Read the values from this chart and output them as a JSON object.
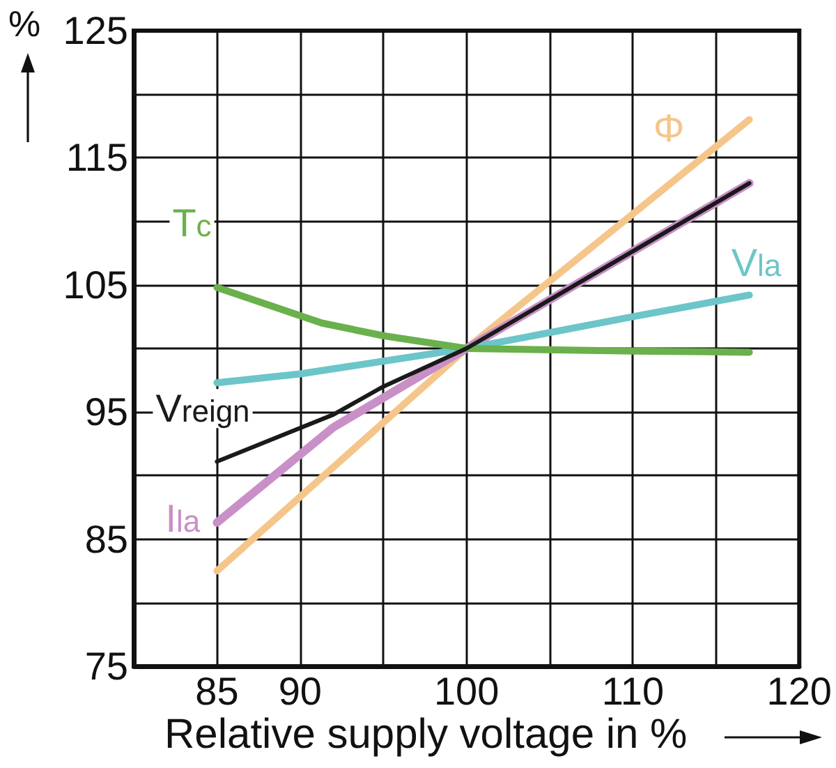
{
  "chart_data": {
    "type": "line",
    "xlabel": "Relative supply voltage in %",
    "ylabel": "%",
    "xlim": [
      80,
      120
    ],
    "xticks": [
      85,
      90,
      {
        "value": 95,
        "label": null
      },
      100,
      {
        "value": 105,
        "label": null
      },
      110,
      {
        "value": 115,
        "label": null
      },
      120
    ],
    "ylim": [
      75,
      125
    ],
    "yticks": [
      75,
      {
        "value": 80,
        "label": null
      },
      85,
      {
        "value": 90,
        "label": null
      },
      95,
      {
        "value": 100,
        "label": null
      },
      105,
      {
        "value": 110,
        "label": null
      },
      115,
      {
        "value": 120,
        "label": null
      },
      125
    ],
    "grid": true,
    "legend": false,
    "marker": "none",
    "line_style": "solid",
    "series": [
      {
        "name": "Φ",
        "color": "#f5c58a",
        "x": [
          85,
          100,
          117
        ],
        "values": [
          82.5,
          100,
          118
        ]
      },
      {
        "name": "I$_{la}$",
        "color": "#c98fc7",
        "x": [
          85,
          92,
          100,
          117
        ],
        "values": [
          86.3,
          93.8,
          100,
          113
        ]
      },
      {
        "name": "V$_{reign}$",
        "color": "#1a1a1a",
        "x": [
          85,
          92,
          95,
          100,
          117
        ],
        "values": [
          91.1,
          94.8,
          97,
          100,
          113
        ]
      },
      {
        "name": "V$_{la}$",
        "color": "#6cc5c8",
        "x": [
          85,
          90,
          95,
          100,
          110,
          117
        ],
        "values": [
          97.3,
          98,
          99,
          100,
          102.5,
          104.2
        ]
      },
      {
        "name": "T$_{c}$",
        "color": "#6ab04c",
        "x": [
          85,
          91.3,
          95,
          100,
          110,
          117
        ],
        "values": [
          104.8,
          102,
          101,
          100,
          99.8,
          99.7
        ]
      }
    ]
  }
}
